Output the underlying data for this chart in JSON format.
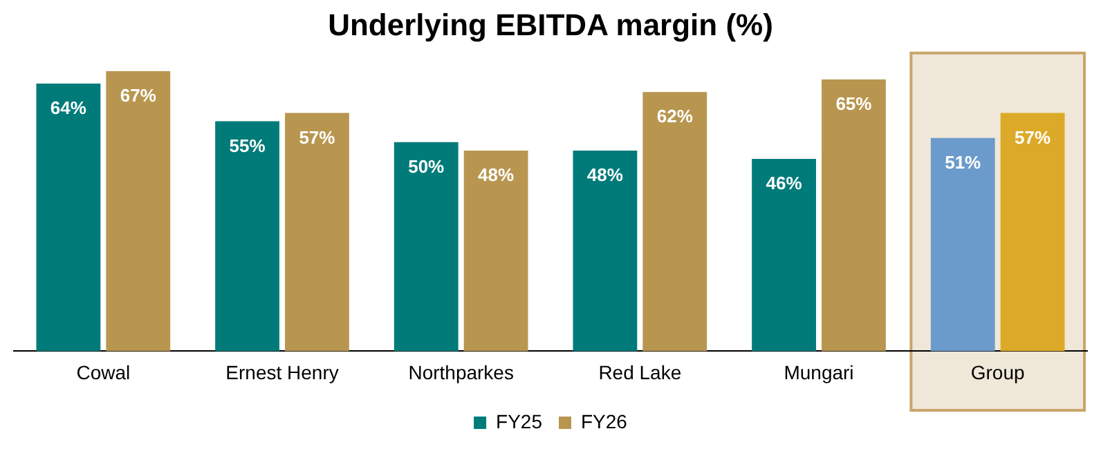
{
  "chart_data": {
    "type": "bar",
    "title": "Underlying EBITDA margin (%)",
    "categories": [
      "Cowal",
      "Ernest Henry",
      "Northparkes",
      "Red Lake",
      "Mungari",
      "Group"
    ],
    "series": [
      {
        "name": "FY25",
        "color": "#007b7a",
        "colors": [
          "#007b7a",
          "#007b7a",
          "#007b7a",
          "#007b7a",
          "#007b7a",
          "#6b9bcb"
        ],
        "values": [
          64,
          55,
          50,
          48,
          46,
          51
        ],
        "value_labels": [
          "64%",
          "55%",
          "50%",
          "48%",
          "46%",
          "51%"
        ]
      },
      {
        "name": "FY26",
        "color": "#b8964f",
        "colors": [
          "#b8964f",
          "#b8964f",
          "#b8964f",
          "#b8964f",
          "#b8964f",
          "#dcaa28"
        ],
        "values": [
          67,
          57,
          48,
          62,
          65,
          57
        ],
        "value_labels": [
          "67%",
          "57%",
          "48%",
          "62%",
          "65%",
          "57%"
        ]
      }
    ],
    "tick_labels": "x",
    "grid": false,
    "legend": "bottom",
    "bands": [
      {
        "axis": "x",
        "from": "Group",
        "to": "Group",
        "color": "#efe7d8"
      }
    ]
  }
}
